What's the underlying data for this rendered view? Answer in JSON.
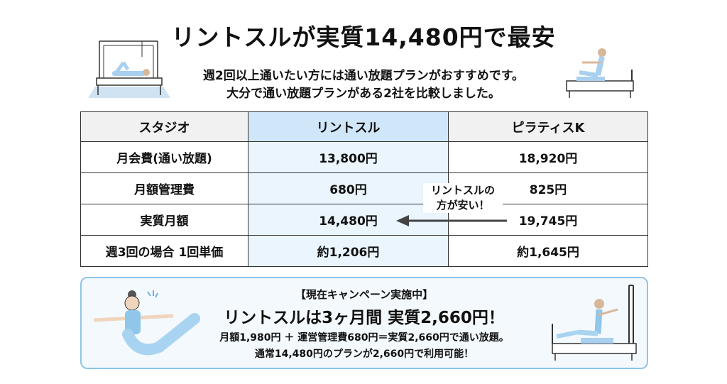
{
  "header": {
    "title": "リントスルが実質14,480円で最安",
    "subtitle_line1": "週2回以上通いたい方には通い放題プランがおすすめです。",
    "subtitle_line2": "大分で通い放題プランがある2社を比較しました。"
  },
  "table": {
    "columns": [
      "スタジオ",
      "リントスル",
      "ピラティスK"
    ],
    "rows": [
      [
        "月会費(通い放題)",
        "13,800円",
        "18,920円"
      ],
      [
        "月額管理費",
        "680円",
        "825円"
      ],
      [
        "実質月額",
        "14,480円",
        "19,745円"
      ],
      [
        "週3回の場合 1回単価",
        "約1,206円",
        "約1,645円"
      ]
    ],
    "highlight_color": "#cfe7f8"
  },
  "callout": {
    "line1": "リントスルの",
    "line2": "方が安い！"
  },
  "promo": {
    "heading": "【現在キャンペーン実施中】",
    "main": "リントスルは3ヶ月間 実質2,660円！",
    "detail1": "月額1,980円 ＋ 運営管理費680円＝実質2,660円で通い放題。",
    "detail2": "通常14,480円のプランが2,660円で利用可能！",
    "border_color": "#8ec5e8"
  }
}
